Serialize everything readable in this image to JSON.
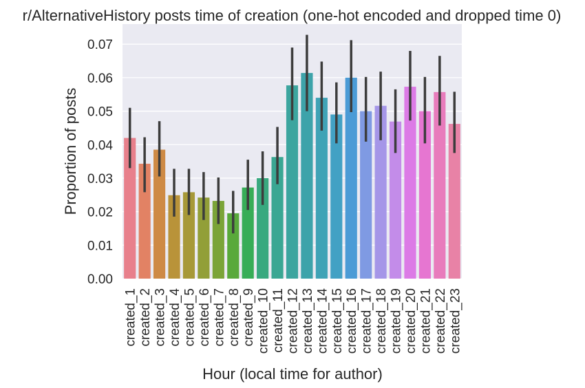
{
  "chart_data": {
    "type": "bar",
    "title": "r/AlternativeHistory posts time of creation (one-hot encoded and dropped time 0)",
    "xlabel": "Hour (local time for author)",
    "ylabel": "Proportion of posts",
    "ylim": [
      0,
      0.076
    ],
    "yticks": [
      "0.00",
      "0.01",
      "0.02",
      "0.03",
      "0.04",
      "0.05",
      "0.06",
      "0.07"
    ],
    "grid": true,
    "categories": [
      "created_1",
      "created_2",
      "created_3",
      "created_4",
      "created_5",
      "created_6",
      "created_7",
      "created_8",
      "created_9",
      "created_10",
      "created_11",
      "created_12",
      "created_13",
      "created_14",
      "created_15",
      "created_16",
      "created_17",
      "created_18",
      "created_19",
      "created_20",
      "created_21",
      "created_22",
      "created_23"
    ],
    "values": [
      0.042,
      0.0343,
      0.0385,
      0.0249,
      0.0258,
      0.0242,
      0.0232,
      0.0195,
      0.0272,
      0.03,
      0.0363,
      0.0577,
      0.0614,
      0.054,
      0.049,
      0.06,
      0.05,
      0.0516,
      0.0469,
      0.0573,
      0.05,
      0.0557,
      0.0462
    ],
    "error_low": [
      0.033,
      0.0258,
      0.0305,
      0.0185,
      0.019,
      0.0175,
      0.0163,
      0.0135,
      0.0205,
      0.022,
      0.0282,
      0.0473,
      0.05,
      0.0442,
      0.0404,
      0.0497,
      0.0409,
      0.0413,
      0.0375,
      0.0472,
      0.0404,
      0.0457,
      0.0375
    ],
    "error_high": [
      0.051,
      0.0422,
      0.047,
      0.0328,
      0.0328,
      0.0318,
      0.0302,
      0.0262,
      0.0355,
      0.038,
      0.0453,
      0.069,
      0.0728,
      0.0648,
      0.0586,
      0.0712,
      0.0602,
      0.0618,
      0.0565,
      0.068,
      0.0602,
      0.0665,
      0.0558
    ],
    "colors": [
      "#e8808c",
      "#e28264",
      "#ce8a45",
      "#b99339",
      "#a79938",
      "#929f38",
      "#7ba438",
      "#59a93b",
      "#37ad57",
      "#38a97f",
      "#3aa793",
      "#3ca59f",
      "#3da3aa",
      "#3fa3b6",
      "#42a1c4",
      "#4b9bd6",
      "#7f9ae3",
      "#a596e8",
      "#c38ce9",
      "#dc7be6",
      "#e676d1",
      "#e87cbc",
      "#e882a6"
    ],
    "errorbar_color": "#3c3c3c",
    "background_color": "#eaeaf2",
    "gridline_color": "#ffffff"
  }
}
